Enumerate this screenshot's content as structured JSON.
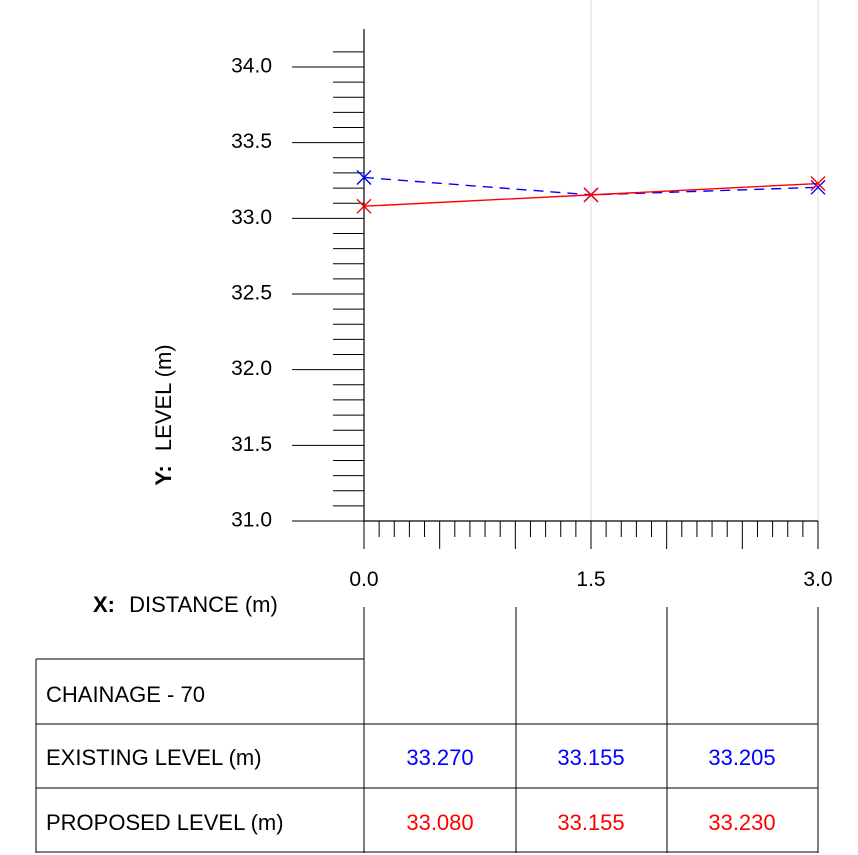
{
  "chart_data": {
    "type": "line",
    "xlabel_prefix": "X:",
    "xlabel": "DISTANCE (m)",
    "ylabel_prefix": "Y:",
    "ylabel": "LEVEL (m)",
    "xlim": [
      0,
      3
    ],
    "ylim": [
      31,
      34.25
    ],
    "x_ticks": [
      "0.0",
      "1.5",
      "3.0"
    ],
    "y_ticks": [
      "31.0",
      "31.5",
      "32.0",
      "32.5",
      "33.0",
      "33.5",
      "34.0"
    ],
    "x": [
      0,
      1.5,
      3
    ],
    "series": [
      {
        "key": "existing",
        "values": [
          33.27,
          33.155,
          33.205
        ],
        "color": "#0000ff",
        "dash": "dashed",
        "marker": "x"
      },
      {
        "key": "proposed",
        "values": [
          33.08,
          33.155,
          33.23
        ],
        "color": "#ff0000",
        "dash": "solid",
        "marker": "x"
      }
    ],
    "grid": "vertical at x ticks"
  },
  "table": {
    "chainage_label": "CHAINAGE - 70",
    "rows": [
      {
        "label": "EXISTING LEVEL (m)",
        "values": [
          "33.270",
          "33.155",
          "33.205"
        ],
        "color": "#0000ff"
      },
      {
        "label": "PROPOSED LEVEL (m)",
        "values": [
          "33.080",
          "33.155",
          "33.230"
        ],
        "color": "#ff0000"
      }
    ]
  }
}
